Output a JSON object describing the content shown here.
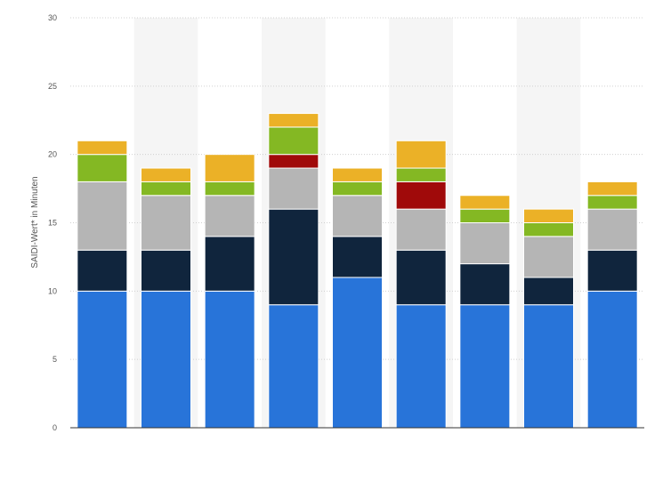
{
  "chart_data": {
    "type": "bar",
    "stacked": true,
    "title": "",
    "xlabel": "",
    "ylabel": "SAIDI-Wert* in Minuten",
    "ylim": [
      0,
      30
    ],
    "yticks": [
      0,
      5,
      10,
      15,
      20,
      25,
      30
    ],
    "grid": true,
    "legend": "none",
    "categories": [
      "",
      "",
      "",
      "",
      "",
      "",
      "",
      "",
      ""
    ],
    "series": [
      {
        "color": "#2874d9",
        "values": [
          10,
          10,
          10,
          9,
          11,
          9,
          9,
          9,
          10
        ]
      },
      {
        "color": "#10253d",
        "values": [
          3,
          3,
          4,
          7,
          3,
          4,
          3,
          2,
          3
        ]
      },
      {
        "color": "#b5b5b5",
        "values": [
          5,
          4,
          3,
          3,
          3,
          3,
          3,
          3,
          3
        ]
      },
      {
        "color": "#a00a0a",
        "values": [
          0,
          0,
          0,
          1,
          0,
          2,
          0,
          0,
          0
        ]
      },
      {
        "color": "#84b823",
        "values": [
          2,
          1,
          1,
          2,
          1,
          1,
          1,
          1,
          1
        ]
      },
      {
        "color": "#ebb127",
        "values": [
          1,
          1,
          2,
          1,
          1,
          2,
          1,
          1,
          1
        ]
      }
    ]
  }
}
